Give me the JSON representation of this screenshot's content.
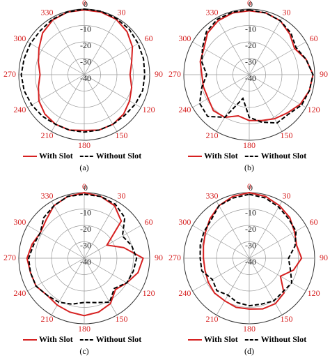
{
  "chart_data": [
    {
      "type": "polar",
      "caption": "(a)",
      "rlim": [
        -40,
        0
      ],
      "rticks": [
        0,
        -10,
        -20,
        -30,
        -40
      ],
      "angle_ticks": [
        0,
        30,
        60,
        90,
        120,
        150,
        180,
        210,
        240,
        270,
        300,
        330
      ],
      "theta": [
        0,
        15,
        30,
        45,
        60,
        75,
        90,
        105,
        120,
        135,
        150,
        165,
        180,
        195,
        210,
        225,
        240,
        255,
        270,
        285,
        300,
        315,
        330,
        345
      ],
      "series": [
        {
          "name": "With Slot",
          "color": "#d62020",
          "dash": false,
          "values": [
            -0.5,
            -0.5,
            -1,
            -3,
            -6,
            -10,
            -12,
            -10,
            -8,
            -6,
            -5,
            -5,
            -6,
            -5,
            -5,
            -6,
            -8,
            -11,
            -13,
            -11,
            -8,
            -4,
            -1.5,
            -0.5
          ]
        },
        {
          "name": "Without Slot",
          "color": "#000000",
          "dash": true,
          "values": [
            0,
            0,
            -0.5,
            -1,
            -2,
            -2.5,
            -3,
            -3,
            -4,
            -5,
            -5,
            -5,
            -5,
            -5,
            -5,
            -4,
            -3,
            -2,
            -1.5,
            -2,
            -2,
            -2,
            -1,
            -0.5
          ]
        }
      ]
    },
    {
      "type": "polar",
      "caption": "(b)",
      "rlim": [
        -40,
        0
      ],
      "rticks": [
        0,
        -10,
        -20,
        -30,
        -40
      ],
      "angle_ticks": [
        0,
        30,
        60,
        90,
        120,
        150,
        180,
        210,
        240,
        270,
        300,
        330
      ],
      "theta": [
        0,
        15,
        30,
        45,
        60,
        75,
        90,
        105,
        120,
        135,
        150,
        165,
        180,
        195,
        210,
        225,
        240,
        255,
        270,
        285,
        300,
        315,
        330,
        345
      ],
      "series": [
        {
          "name": "With Slot",
          "color": "#d62020",
          "dash": false,
          "values": [
            -1,
            -1,
            -2,
            -5,
            -8,
            -4,
            -1,
            -2,
            -4,
            -7,
            -9,
            -11,
            -12,
            -14,
            -10,
            -9,
            -11,
            -11,
            -11,
            -9,
            -8,
            -4,
            -2,
            -1
          ]
        },
        {
          "name": "Without Slot",
          "color": "#000000",
          "dash": true,
          "values": [
            -0.5,
            -1,
            -2,
            -4,
            -7,
            -4,
            -1,
            -2,
            -3,
            -6,
            -6,
            -10,
            -14,
            -25,
            -10,
            -4,
            -5,
            -10,
            -14,
            -10,
            -7,
            -3,
            -1,
            -0.5
          ]
        }
      ]
    },
    {
      "type": "polar",
      "caption": "(c)",
      "rlim": [
        -40,
        0
      ],
      "rticks": [
        0,
        -10,
        -20,
        -30,
        -40
      ],
      "angle_ticks": [
        0,
        30,
        60,
        90,
        120,
        150,
        180,
        210,
        240,
        270,
        300,
        330
      ],
      "theta": [
        0,
        15,
        30,
        45,
        60,
        75,
        90,
        105,
        120,
        135,
        150,
        165,
        180,
        195,
        210,
        225,
        240,
        255,
        270,
        285,
        300,
        315,
        330,
        345
      ],
      "series": [
        {
          "name": "With Slot",
          "color": "#d62020",
          "dash": false,
          "values": [
            0,
            -1,
            -3,
            -8,
            -24,
            -15,
            -4,
            -6,
            -10,
            -13,
            -8,
            -6,
            -5,
            -6,
            -7,
            -8,
            -6,
            -6,
            -5,
            -7,
            -9,
            -7,
            -3,
            -1
          ]
        },
        {
          "name": "Without Slot",
          "color": "#000000",
          "dash": true,
          "values": [
            -1,
            -1,
            -2,
            -5,
            -13,
            -10,
            -8,
            -9,
            -10,
            -14,
            -9,
            -12,
            -13,
            -11,
            -9,
            -8,
            -6,
            -6,
            -6,
            -8,
            -9,
            -5,
            -3,
            -1
          ]
        }
      ]
    },
    {
      "type": "polar",
      "caption": "(d)",
      "rlim": [
        -40,
        0
      ],
      "rticks": [
        0,
        -10,
        -20,
        -30,
        -40
      ],
      "angle_ticks": [
        0,
        30,
        60,
        90,
        120,
        150,
        180,
        210,
        240,
        270,
        300,
        330
      ],
      "theta": [
        0,
        15,
        30,
        45,
        60,
        75,
        90,
        105,
        120,
        135,
        150,
        165,
        180,
        195,
        210,
        225,
        240,
        255,
        270,
        285,
        300,
        315,
        330,
        345
      ],
      "series": [
        {
          "name": "With Slot",
          "color": "#d62020",
          "dash": false,
          "values": [
            0,
            -1,
            -3,
            -5,
            -8,
            -10,
            -8,
            -12,
            -18,
            -10,
            -8,
            -8,
            -9,
            -9,
            -10,
            -10,
            -11,
            -12,
            -12,
            -11,
            -9,
            -6,
            -3,
            -1
          ]
        },
        {
          "name": "Without Slot",
          "color": "#000000",
          "dash": true,
          "values": [
            -1,
            -2,
            -4,
            -6,
            -7,
            -11,
            -16,
            -14,
            -10,
            -11,
            -10,
            -11,
            -11,
            -12,
            -14,
            -12,
            -14,
            -10,
            -10,
            -9,
            -8,
            -7,
            -3,
            -2
          ]
        }
      ]
    }
  ]
}
